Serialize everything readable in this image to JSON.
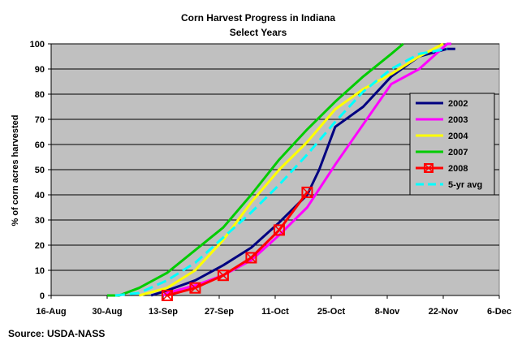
{
  "source": "Source: USDA-NASS",
  "chart_data": {
    "type": "line",
    "title": "Corn Harvest Progress in Indiana",
    "subtitle": "Select Years",
    "xlabel": "",
    "ylabel": "% of corn acres harvested",
    "xlim": [
      "2008-08-16",
      "2008-12-06"
    ],
    "ylim": [
      0,
      100
    ],
    "x_ticks": [
      "16-Aug",
      "30-Aug",
      "13-Sep",
      "27-Sep",
      "11-Oct",
      "25-Oct",
      "8-Nov",
      "22-Nov",
      "6-Dec"
    ],
    "y_ticks": [
      0,
      10,
      20,
      30,
      40,
      50,
      60,
      70,
      80,
      90,
      100
    ],
    "grid": true,
    "plot_background": "#c0c0c0",
    "legend_position": "right",
    "series": [
      {
        "name": "2002",
        "color": "#000080",
        "dashed": false,
        "markers": false,
        "x": [
          "2008-09-10",
          "2008-09-14",
          "2008-09-21",
          "2008-09-28",
          "2008-10-05",
          "2008-10-12",
          "2008-10-19",
          "2008-10-22",
          "2008-10-26",
          "2008-11-02",
          "2008-11-09",
          "2008-11-16",
          "2008-11-23",
          "2008-11-25"
        ],
        "y": [
          0,
          2,
          6,
          12,
          19,
          29,
          40,
          50,
          67,
          75,
          87,
          95,
          98,
          98
        ]
      },
      {
        "name": "2003",
        "color": "#ff00ff",
        "dashed": false,
        "markers": false,
        "x": [
          "2008-09-13",
          "2008-09-14",
          "2008-09-21",
          "2008-09-28",
          "2008-10-05",
          "2008-10-12",
          "2008-10-19",
          "2008-10-26",
          "2008-11-02",
          "2008-11-09",
          "2008-11-16",
          "2008-11-23",
          "2008-11-24"
        ],
        "y": [
          0,
          1,
          4,
          8,
          14,
          24,
          35,
          52,
          68,
          84,
          90,
          100,
          100
        ]
      },
      {
        "name": "2004",
        "color": "#ffff00",
        "dashed": false,
        "markers": false,
        "x": [
          "2008-09-07",
          "2008-09-14",
          "2008-09-21",
          "2008-09-28",
          "2008-10-05",
          "2008-10-12",
          "2008-10-19",
          "2008-10-26",
          "2008-11-02",
          "2008-11-09",
          "2008-11-16",
          "2008-11-22"
        ],
        "y": [
          0,
          3,
          10,
          22,
          37,
          50,
          61,
          74,
          82,
          88,
          95,
          100
        ]
      },
      {
        "name": "2007",
        "color": "#00cc00",
        "dashed": false,
        "markers": false,
        "x": [
          "2008-08-30",
          "2008-09-02",
          "2008-09-07",
          "2008-09-14",
          "2008-09-21",
          "2008-09-28",
          "2008-10-05",
          "2008-10-12",
          "2008-10-19",
          "2008-10-26",
          "2008-11-02",
          "2008-11-09",
          "2008-11-12"
        ],
        "y": [
          0,
          0,
          3,
          9,
          18,
          27,
          40,
          54,
          66,
          77,
          87,
          96,
          100
        ]
      },
      {
        "name": "2008",
        "color": "#ff0000",
        "dashed": false,
        "markers": true,
        "x": [
          "2008-09-14",
          "2008-09-21",
          "2008-09-28",
          "2008-10-05",
          "2008-10-12",
          "2008-10-19"
        ],
        "y": [
          0,
          3,
          8,
          15,
          26,
          41
        ]
      },
      {
        "name": "5-yr avg",
        "color": "#00ffff",
        "dashed": true,
        "markers": false,
        "x": [
          "2008-09-01",
          "2008-09-07",
          "2008-09-14",
          "2008-09-21",
          "2008-09-28",
          "2008-10-05",
          "2008-10-12",
          "2008-10-19",
          "2008-10-26",
          "2008-11-02",
          "2008-11-09",
          "2008-11-16",
          "2008-11-23"
        ],
        "y": [
          0,
          1,
          6,
          13,
          23,
          33,
          44,
          56,
          69,
          81,
          90,
          96,
          98
        ]
      }
    ]
  }
}
